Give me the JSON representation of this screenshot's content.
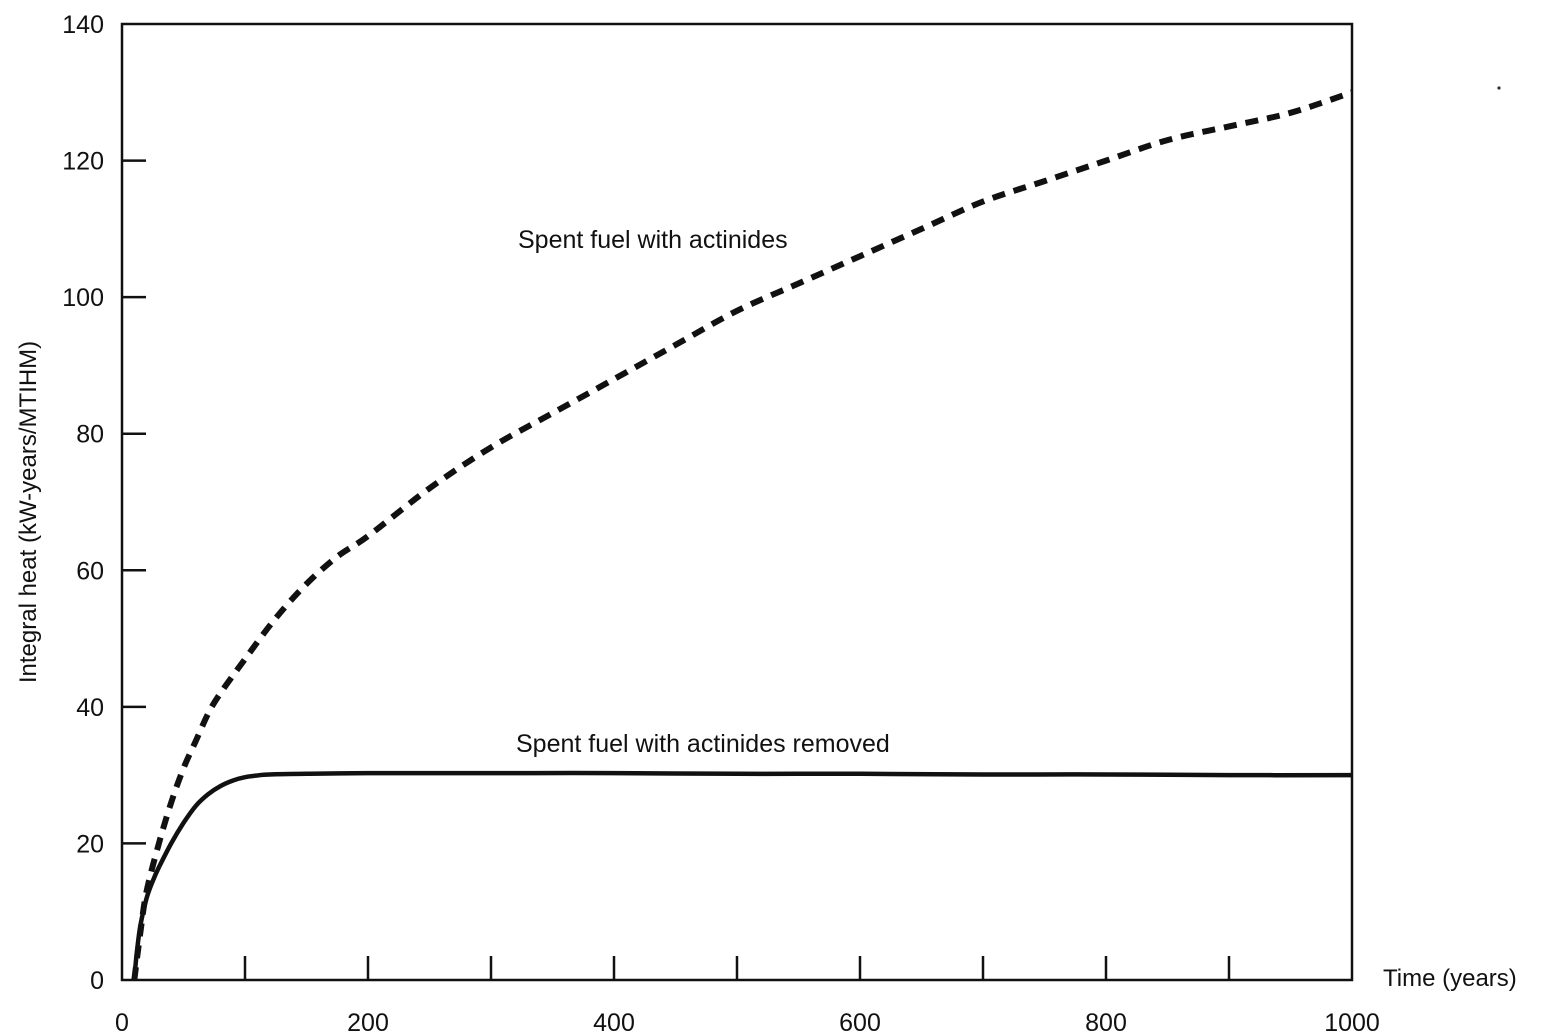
{
  "chart_data": {
    "type": "line",
    "xlabel": "Time (years)",
    "ylabel": "Integral heat (kW-years/MTIHM)",
    "xlim": [
      0,
      1000
    ],
    "ylim": [
      0,
      140
    ],
    "x_ticks": [
      0,
      200,
      400,
      600,
      800,
      1000
    ],
    "x_minor_ticks": [
      100,
      200,
      300,
      400,
      500,
      600,
      700,
      800,
      900
    ],
    "y_ticks": [
      0,
      20,
      40,
      60,
      80,
      100,
      120,
      140
    ],
    "grid": false,
    "legend": "none",
    "series": [
      {
        "name": "Spent fuel with actinides",
        "style": "dashed",
        "color": "#111111",
        "x": [
          10,
          15,
          20,
          30,
          40,
          50,
          60,
          70,
          80,
          100,
          125,
          150,
          175,
          200,
          250,
          300,
          350,
          400,
          450,
          500,
          550,
          600,
          650,
          700,
          750,
          800,
          850,
          900,
          950,
          1000
        ],
        "y": [
          0,
          7,
          13,
          20,
          26,
          31,
          35,
          39,
          42,
          47,
          53,
          58,
          62,
          65,
          72,
          78,
          83,
          88,
          93,
          98,
          102,
          106,
          110,
          114,
          117,
          120,
          123,
          125,
          127,
          130
        ]
      },
      {
        "name": "Spent fuel with actinides removed",
        "style": "solid",
        "color": "#111111",
        "x": [
          10,
          12,
          15,
          20,
          25,
          30,
          40,
          50,
          60,
          70,
          80,
          90,
          100,
          110,
          120,
          150,
          200,
          300,
          400,
          500,
          600,
          700,
          800,
          900,
          1000
        ],
        "y": [
          0,
          4,
          8,
          12,
          14.5,
          16.5,
          20,
          23,
          25.5,
          27.2,
          28.4,
          29.2,
          29.7,
          29.95,
          30.1,
          30.2,
          30.3,
          30.3,
          30.3,
          30.2,
          30.2,
          30.1,
          30.1,
          30.0,
          30.0
        ]
      }
    ],
    "annotations": [
      {
        "text": "Spent fuel with actinides",
        "series": 0
      },
      {
        "text": "Spent fuel with actinides removed",
        "series": 1
      }
    ]
  }
}
